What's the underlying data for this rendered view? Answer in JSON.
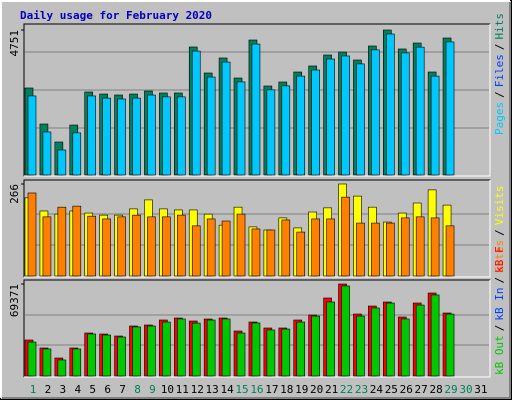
{
  "title": "Daily usage for February 2020",
  "separator": "/",
  "categories": [
    "1",
    "2",
    "3",
    "4",
    "5",
    "6",
    "7",
    "8",
    "9",
    "10",
    "11",
    "12",
    "13",
    "14",
    "15",
    "16",
    "17",
    "18",
    "19",
    "20",
    "21",
    "22",
    "23",
    "24",
    "25",
    "26",
    "27",
    "28",
    "29",
    "30",
    "31"
  ],
  "category_colors": [
    "#00805c",
    "#000000",
    "#000000",
    "#000000",
    "#000000",
    "#000000",
    "#000000",
    "#00805c",
    "#00805c",
    "#000000",
    "#000000",
    "#000000",
    "#000000",
    "#000000",
    "#00805c",
    "#00805c",
    "#000000",
    "#000000",
    "#000000",
    "#000000",
    "#000000",
    "#00805c",
    "#00805c",
    "#000000",
    "#000000",
    "#000000",
    "#000000",
    "#000000",
    "#00805c",
    "#00805c",
    "#000000"
  ],
  "chart_data": [
    {
      "type": "bar",
      "ylim": [
        0,
        4751
      ],
      "yticks": [
        4751
      ],
      "series": [
        {
          "name": "Hits",
          "color": "#00805c",
          "values": [
            2851,
            1671,
            1081,
            1638,
            2720,
            2654,
            2621,
            2654,
            2752,
            2687,
            2687,
            4194,
            3342,
            3834,
            3178,
            4423,
            2916,
            3047,
            3375,
            3572,
            3932,
            4030,
            3768,
            4227,
            4751,
            4129,
            4325,
            3375,
            4489,
            null,
            null
          ]
        },
        {
          "name": "Files",
          "color": "#0040ff",
          "values": [
            null,
            null,
            null,
            null,
            null,
            null,
            null,
            null,
            null,
            null,
            null,
            null,
            null,
            null,
            null,
            null,
            null,
            null,
            null,
            null,
            null,
            null,
            null,
            null,
            null,
            null,
            null,
            null,
            null,
            null,
            null
          ]
        },
        {
          "name": "Pages",
          "color": "#00c8ff",
          "values": [
            2590,
            1410,
            820,
            1380,
            2590,
            2520,
            2490,
            2520,
            2620,
            2560,
            2560,
            4060,
            3210,
            3700,
            3050,
            4290,
            2790,
            2920,
            3240,
            3440,
            3800,
            3900,
            3640,
            4100,
            4620,
            4000,
            4190,
            3240,
            4360,
            null,
            null
          ]
        }
      ]
    },
    {
      "type": "bar",
      "ylim": [
        0,
        266
      ],
      "yticks": [
        266
      ],
      "series": [
        {
          "name": "Visits",
          "color": "#ffff00",
          "values": [
            226,
            188,
            179,
            188,
            182,
            176,
            176,
            194,
            220,
            194,
            191,
            191,
            179,
            147,
            199,
            142,
            133,
            168,
            139,
            185,
            197,
            266,
            231,
            199,
            156,
            182,
            211,
            249,
            205,
            null,
            null
          ]
        },
        {
          "name": "Sites",
          "color": "#ff8000",
          "values": [
            240,
            171,
            199,
            202,
            173,
            165,
            171,
            176,
            171,
            171,
            176,
            145,
            165,
            159,
            179,
            136,
            133,
            162,
            127,
            165,
            165,
            228,
            153,
            153,
            153,
            168,
            171,
            168,
            145,
            null,
            null
          ]
        }
      ]
    },
    {
      "type": "bar",
      "ylim": [
        0,
        69371
      ],
      "yticks": [
        69371
      ],
      "series": [
        {
          "name": "kB F",
          "color": "#ff0000",
          "values": [
            27144,
            21112,
            13572,
            21112,
            32422,
            31668,
            30160,
            37700,
            38454,
            42224,
            43732,
            41470,
            42978,
            43732,
            33930,
            40716,
            36192,
            36192,
            42224,
            45994,
            58812,
            69371,
            46748,
            52780,
            55796,
            44486,
            55042,
            62582,
            47502,
            null,
            null
          ]
        },
        {
          "name": "kB In",
          "color": "#0040ff",
          "values": [
            null,
            null,
            null,
            null,
            null,
            null,
            null,
            null,
            null,
            null,
            null,
            null,
            null,
            null,
            null,
            null,
            null,
            null,
            null,
            null,
            null,
            null,
            null,
            null,
            null,
            null,
            null,
            null,
            null,
            null,
            null
          ]
        },
        {
          "name": "kB Out",
          "color": "#00c800",
          "values": [
            25600,
            20400,
            12100,
            20400,
            31700,
            30900,
            29400,
            37000,
            37700,
            40700,
            43000,
            39900,
            42200,
            43000,
            32400,
            40000,
            34700,
            35400,
            40700,
            45200,
            55800,
            67900,
            45200,
            51300,
            55000,
            43000,
            53500,
            61100,
            46700,
            null,
            null
          ]
        }
      ]
    }
  ]
}
